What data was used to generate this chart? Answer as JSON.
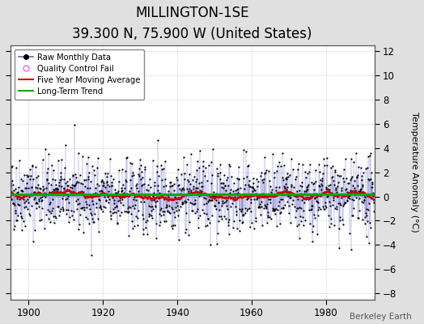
{
  "title": "MILLINGTON-1SE",
  "subtitle": "39.300 N, 75.900 W (United States)",
  "ylabel": "Temperature Anomaly (°C)",
  "attribution": "Berkeley Earth",
  "xlim": [
    1895,
    1993
  ],
  "ylim": [
    -8.5,
    12.5
  ],
  "yticks": [
    -8,
    -6,
    -4,
    -2,
    0,
    2,
    4,
    6,
    8,
    10,
    12
  ],
  "xticks": [
    1900,
    1920,
    1940,
    1960,
    1980
  ],
  "year_start": 1895,
  "year_end": 1993,
  "seed": 42,
  "bg_color": "#e0e0e0",
  "plot_bg_color": "#ffffff",
  "raw_line_color": "#6666cc",
  "raw_marker_color": "#000000",
  "moving_avg_color": "#cc0000",
  "trend_color": "#00aa00",
  "qc_color": "#ff66ff",
  "title_fontsize": 12,
  "subtitle_fontsize": 9,
  "label_fontsize": 8,
  "tick_fontsize": 8.5,
  "noise_std": 1.5,
  "n_months_per_year": 12
}
